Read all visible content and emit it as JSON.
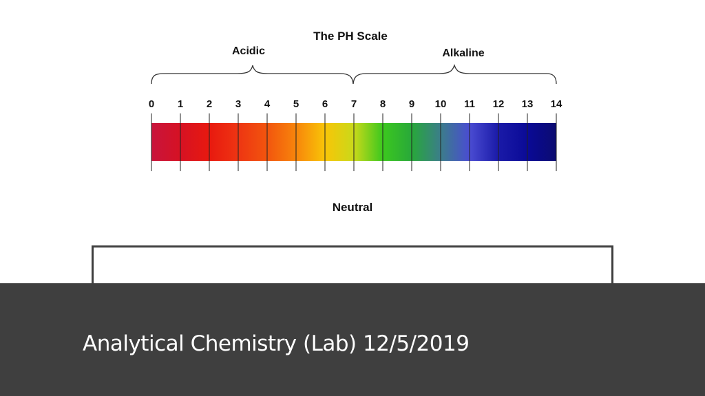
{
  "diagram": {
    "title": "The PH Scale",
    "acidic_label": "Acidic",
    "alkaline_label": "Alkaline",
    "neutral_label": "Neutral",
    "scale_values": [
      "0",
      "1",
      "2",
      "3",
      "4",
      "5",
      "6",
      "7",
      "8",
      "9",
      "10",
      "11",
      "12",
      "13",
      "14"
    ],
    "gradient_colors": [
      "#c8143c",
      "#d61223",
      "#e8190f",
      "#ee3512",
      "#f2550e",
      "#f7850b",
      "#f9c507",
      "#c9d91a",
      "#3cc81e",
      "#28a83a",
      "#3b7d8a",
      "#4a4cd2",
      "#1a1aa8",
      "#0a0a96",
      "#0b0b70"
    ]
  },
  "slide": {
    "title": "Analytical Chemistry (Lab) 12/5/2019",
    "footer_color": "#3f3f3f"
  }
}
